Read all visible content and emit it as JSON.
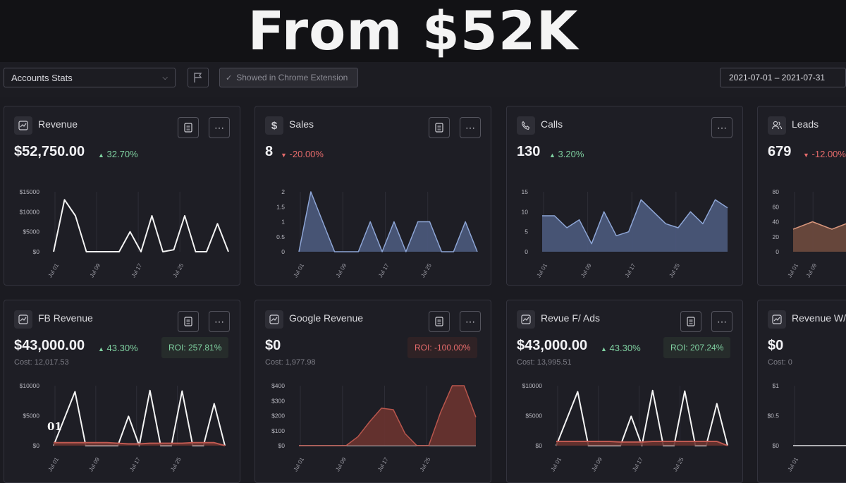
{
  "banner": {
    "title": "From $52K"
  },
  "toolbar": {
    "select_value": "Accounts Stats",
    "extension_label": "Showed in Chrome Extension",
    "date_range": "2021-07-01 – 2021-07-31"
  },
  "overlay_text": "01",
  "colors": {
    "positive": "#7fd0a0",
    "negative": "#e56b6b",
    "blue_fill": "#4b5a7d",
    "red_fill": "#6a3330",
    "line_white": "#f4f4f4"
  },
  "cards": [
    {
      "title": "Revenue",
      "icon": "line-chart-icon",
      "value": "$52,750.00",
      "change": "32.70%",
      "direction": "up"
    },
    {
      "title": "Sales",
      "icon": "dollar-icon",
      "value": "8",
      "change": "-20.00%",
      "direction": "down"
    },
    {
      "title": "Calls",
      "icon": "phone-icon",
      "value": "130",
      "change": "3.20%",
      "direction": "up"
    },
    {
      "title": "Leads",
      "icon": "users-icon",
      "value": "679",
      "change": "-12.00%",
      "direction": "down"
    },
    {
      "title": "FB Revenue",
      "icon": "line-chart-icon",
      "value": "$43,000.00",
      "change": "43.30%",
      "direction": "up",
      "cost": "Cost: 12,017.53",
      "roi": "ROI: 257.81%"
    },
    {
      "title": "Google Revenue",
      "icon": "line-chart-icon",
      "value": "$0",
      "cost": "Cost: 1,977.98",
      "roi": "ROI: -100.00%"
    },
    {
      "title": "Revue F/ Ads",
      "icon": "line-chart-icon",
      "value": "$43,000.00",
      "change": "43.30%",
      "direction": "up",
      "cost": "Cost: 13,995.51",
      "roi": "ROI: 207.24%"
    },
    {
      "title": "Revenue W/",
      "icon": "line-chart-icon",
      "value": "$0",
      "cost": "Cost: 0"
    }
  ],
  "chart_data": [
    {
      "type": "line",
      "card": "Revenue",
      "x_ticks": [
        "Jul 01",
        "Jul 09",
        "Jul 17",
        "Jul 25"
      ],
      "y_ticks": [
        "$0",
        "$5000",
        "$10000",
        "$15000"
      ],
      "ylim": [
        0,
        15000
      ],
      "series": [
        {
          "values": [
            0,
            13000,
            9000,
            0,
            0,
            0,
            0,
            5000,
            0,
            9000,
            0,
            500,
            9000,
            0,
            0,
            7000,
            0
          ]
        }
      ]
    },
    {
      "type": "area",
      "card": "Sales",
      "x_ticks": [
        "Jul 01",
        "Jul 09",
        "Jul 17",
        "Jul 25"
      ],
      "y_ticks": [
        "0",
        "0.5",
        "1",
        "1.5",
        "2"
      ],
      "ylim": [
        0,
        2
      ],
      "series": [
        {
          "values": [
            0,
            2,
            1,
            0,
            0,
            0,
            1,
            0,
            1,
            0,
            1,
            1,
            0,
            0,
            1,
            0
          ]
        }
      ]
    },
    {
      "type": "area",
      "card": "Calls",
      "x_ticks": [
        "Jul 01",
        "Jul 09",
        "Jul 17",
        "Jul 25"
      ],
      "y_ticks": [
        "0",
        "5",
        "10",
        "15"
      ],
      "ylim": [
        0,
        15
      ],
      "series": [
        {
          "values": [
            9,
            9,
            6,
            8,
            2,
            10,
            4,
            5,
            13,
            10,
            7,
            6,
            10,
            7,
            13,
            11
          ]
        }
      ]
    },
    {
      "type": "area",
      "card": "Leads",
      "x_ticks": [
        "Jul 01",
        "Jul 09"
      ],
      "y_ticks": [
        "0",
        "20",
        "40",
        "60",
        "80"
      ],
      "ylim": [
        0,
        80
      ],
      "series": [
        {
          "values": [
            30,
            40,
            30,
            40,
            30
          ]
        }
      ]
    },
    {
      "type": "line",
      "card": "FB Revenue",
      "x_ticks": [
        "Jul 01",
        "Jul 09",
        "Jul 17",
        "Jul 25"
      ],
      "y_ticks": [
        "$0",
        "$5000",
        "$10000"
      ],
      "ylim": [
        0,
        10000
      ],
      "series": [
        {
          "values": [
            0,
            4500,
            9000,
            0,
            0,
            0,
            0,
            4900,
            0,
            9200,
            0,
            0,
            9100,
            0,
            0,
            7000,
            0
          ]
        },
        {
          "values": [
            500,
            500,
            500,
            500,
            500,
            500,
            400,
            300,
            300,
            400,
            400,
            400,
            400,
            500,
            500,
            500,
            0
          ]
        }
      ]
    },
    {
      "type": "area",
      "card": "Google Revenue",
      "x_ticks": [
        "Jul 01",
        "Jul 09",
        "Jul 17",
        "Jul 25"
      ],
      "y_ticks": [
        "$0",
        "$100",
        "$200",
        "$300",
        "$400"
      ],
      "ylim": [
        0,
        400
      ],
      "series": [
        {
          "values": [
            0,
            0,
            0,
            0,
            0,
            0,
            0,
            0,
            0,
            0,
            0,
            0,
            0,
            0,
            0
          ]
        },
        {
          "values": [
            0,
            0,
            0,
            0,
            0,
            60,
            160,
            250,
            240,
            80,
            0,
            0,
            220,
            400,
            400,
            190
          ]
        }
      ]
    },
    {
      "type": "line",
      "card": "Revue F/ Ads",
      "x_ticks": [
        "Jul 01",
        "Jul 09",
        "Jul 17",
        "Jul 25"
      ],
      "y_ticks": [
        "$0",
        "$5000",
        "$10000"
      ],
      "ylim": [
        0,
        10000
      ],
      "series": [
        {
          "values": [
            0,
            4500,
            9000,
            0,
            0,
            0,
            0,
            4900,
            0,
            9200,
            0,
            0,
            9100,
            0,
            0,
            7000,
            0
          ]
        },
        {
          "values": [
            700,
            700,
            700,
            700,
            700,
            700,
            600,
            600,
            600,
            700,
            700,
            700,
            700,
            700,
            700,
            700,
            0
          ]
        }
      ]
    },
    {
      "type": "line",
      "card": "Revenue W/",
      "x_ticks": [
        "Jul 01"
      ],
      "y_ticks": [
        "$0",
        "$0.5",
        "$1"
      ],
      "ylim": [
        0,
        1
      ],
      "series": [
        {
          "values": [
            0,
            0,
            0,
            0,
            0
          ]
        }
      ]
    }
  ]
}
